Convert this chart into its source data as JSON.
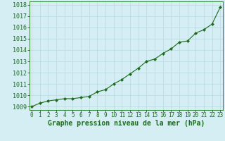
{
  "x": [
    0,
    1,
    2,
    3,
    4,
    5,
    6,
    7,
    8,
    9,
    10,
    11,
    12,
    13,
    14,
    15,
    16,
    17,
    18,
    19,
    20,
    21,
    22,
    23
  ],
  "y": [
    1009.0,
    1009.3,
    1009.5,
    1009.6,
    1009.7,
    1009.7,
    1009.8,
    1009.9,
    1010.3,
    1010.5,
    1011.0,
    1011.4,
    1011.9,
    1012.4,
    1013.0,
    1013.2,
    1013.7,
    1014.1,
    1014.7,
    1014.8,
    1015.5,
    1015.8,
    1016.3,
    1017.8
  ],
  "line_color": "#1a6b1a",
  "marker": "D",
  "marker_size": 2.2,
  "bg_color": "#d4eef4",
  "grid_color": "#b8d8e0",
  "xlabel": "Graphe pression niveau de la mer (hPa)",
  "xlabel_color": "#1a6b1a",
  "xlabel_fontsize": 7,
  "tick_color": "#1a6b1a",
  "ytick_fontsize": 6,
  "xtick_fontsize": 5.5,
  "ylim": [
    1008.7,
    1018.3
  ],
  "yticks": [
    1009,
    1010,
    1011,
    1012,
    1013,
    1014,
    1015,
    1016,
    1017,
    1018
  ],
  "xlim": [
    -0.3,
    23.3
  ],
  "xticks": [
    0,
    1,
    2,
    3,
    4,
    5,
    6,
    7,
    8,
    9,
    10,
    11,
    12,
    13,
    14,
    15,
    16,
    17,
    18,
    19,
    20,
    21,
    22,
    23
  ]
}
